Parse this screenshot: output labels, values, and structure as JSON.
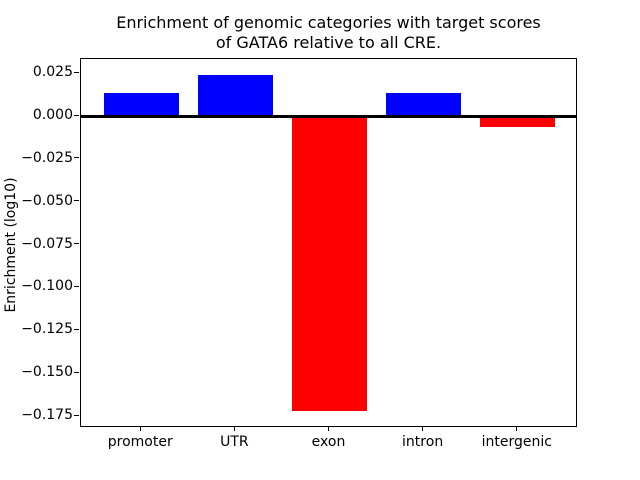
{
  "chart_data": {
    "type": "bar",
    "title": "Enrichment of genomic categories with target scores\nof GATA6 relative to all CRE.",
    "title_lines": [
      "Enrichment of genomic categories with target scores",
      "of GATA6 relative to all CRE."
    ],
    "xlabel": "",
    "ylabel": "Enrichment (log10)",
    "categories": [
      "promoter",
      "UTR",
      "exon",
      "intron",
      "intergenic"
    ],
    "values": [
      0.0134,
      0.0239,
      -0.1721,
      0.0134,
      -0.0064
    ],
    "bar_colors": [
      "#0000ff",
      "#0000ff",
      "#ff0000",
      "#0000ff",
      "#ff0000"
    ],
    "positive_color": "#0000ff",
    "negative_color": "#ff0000",
    "bar_width": 0.8,
    "xlim": [
      -0.64,
      4.64
    ],
    "ylim": [
      -0.182,
      0.03325
    ],
    "yticks": [
      0.025,
      0.0,
      -0.025,
      -0.05,
      -0.075,
      -0.1,
      -0.125,
      -0.15,
      -0.175
    ],
    "ytick_labels": [
      "0.025",
      "0.000",
      "−0.025",
      "−0.050",
      "−0.075",
      "−0.100",
      "−0.125",
      "−0.150",
      "−0.175"
    ],
    "zero_line": true,
    "grid": false,
    "legend": null
  }
}
